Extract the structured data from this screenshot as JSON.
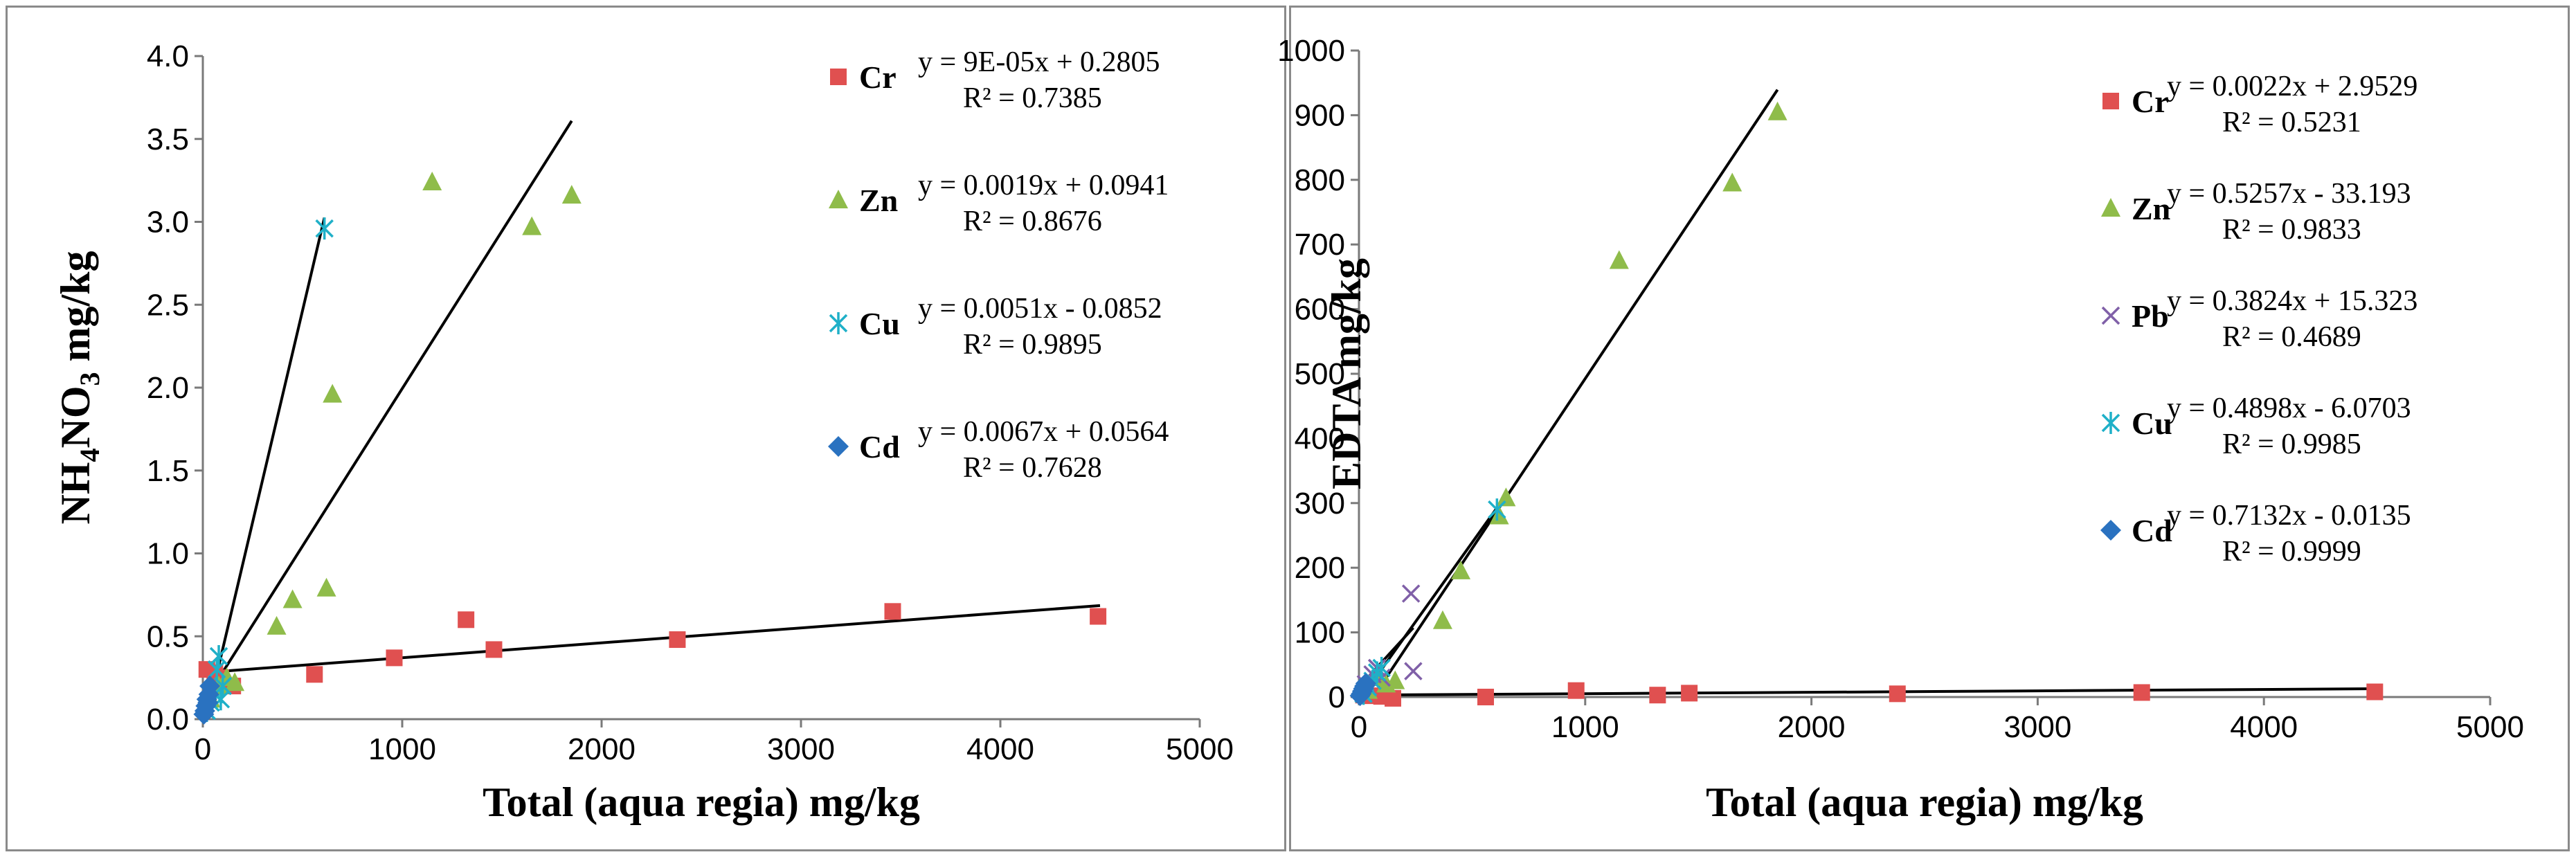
{
  "colors": {
    "Cr": "#e05050",
    "Zn": "#8fbc4a",
    "Pb": "#8060a8",
    "Cu": "#1fb0c8",
    "Cd": "#2a72c0",
    "line": "#000000",
    "frame": "#8a8a8a"
  },
  "chart_data": [
    {
      "type": "scatter",
      "title": "",
      "xlabel": "Total (aqua regia) mg/kg",
      "ylabel_main": "NH",
      "ylabel_sub1": "4",
      "ylabel_mid": "NO",
      "ylabel_sub2": "3",
      "ylabel_units": "mg/kg",
      "xlim": [
        0,
        5000
      ],
      "ylim": [
        0,
        4.0
      ],
      "xticks": [
        "0",
        "1000",
        "2000",
        "3000",
        "4000",
        "5000"
      ],
      "xtick_values": [
        0,
        1000,
        2000,
        3000,
        4000,
        5000
      ],
      "yticks": [
        "0.0",
        "0.5",
        "1.0",
        "1.5",
        "2.0",
        "2.5",
        "3.0",
        "3.5",
        "4.0"
      ],
      "ytick_values": [
        0,
        0.5,
        1.0,
        1.5,
        2.0,
        2.5,
        3.0,
        3.5,
        4.0
      ],
      "series": [
        {
          "name": "Cr",
          "marker": "square",
          "eq": "y = 9E-05x + 0.2805",
          "r2": "R² = 0.7385",
          "points": [
            [
              20,
              0.3
            ],
            [
              60,
              0.28
            ],
            [
              90,
              0.25
            ],
            [
              150,
              0.2
            ],
            [
              560,
              0.27
            ],
            [
              960,
              0.37
            ],
            [
              1320,
              0.6
            ],
            [
              1460,
              0.42
            ],
            [
              2380,
              0.48
            ],
            [
              3460,
              0.65
            ],
            [
              4490,
              0.62
            ]
          ],
          "fit": [
            [
              0,
              0.2805
            ],
            [
              4500,
              0.6855
            ]
          ]
        },
        {
          "name": "Zn",
          "marker": "triangle",
          "eq": "y = 0.0019x + 0.0941",
          "r2": "R² = 0.8676",
          "points": [
            [
              40,
              0.12
            ],
            [
              80,
              0.2
            ],
            [
              120,
              0.25
            ],
            [
              160,
              0.22
            ],
            [
              370,
              0.56
            ],
            [
              450,
              0.72
            ],
            [
              620,
              0.79
            ],
            [
              650,
              1.96
            ],
            [
              1150,
              3.24
            ],
            [
              1650,
              2.97
            ],
            [
              1850,
              3.16
            ]
          ],
          "fit": [
            [
              0,
              0.0941
            ],
            [
              1850,
              3.6091
            ]
          ]
        },
        {
          "name": "Cu",
          "marker": "star",
          "eq": "y = 0.0051x - 0.0852",
          "r2": "R² = 0.9895",
          "points": [
            [
              20,
              0.05
            ],
            [
              40,
              0.1
            ],
            [
              60,
              0.15
            ],
            [
              70,
              0.3
            ],
            [
              80,
              0.38
            ],
            [
              90,
              0.12
            ],
            [
              100,
              0.2
            ],
            [
              610,
              2.96
            ]
          ],
          "fit": [
            [
              20,
              0.0168
            ],
            [
              610,
              3.0258
            ]
          ]
        },
        {
          "name": "Cd",
          "marker": "diamond",
          "eq": "y = 0.0067x + 0.0564",
          "r2": "R² = 0.7628",
          "points": [
            [
              5,
              0.03
            ],
            [
              10,
              0.05
            ],
            [
              15,
              0.08
            ],
            [
              20,
              0.12
            ],
            [
              25,
              0.1
            ],
            [
              30,
              0.15
            ],
            [
              35,
              0.2
            ]
          ],
          "fit": [
            [
              0,
              0.0564
            ],
            [
              30,
              0.2574
            ]
          ]
        }
      ]
    },
    {
      "type": "scatter",
      "title": "",
      "xlabel": "Total (aqua regia) mg/kg",
      "ylabel_main": "EDTA",
      "ylabel_units": "mg/kg",
      "xlim": [
        0,
        5000
      ],
      "ylim": [
        0,
        1000
      ],
      "xticks": [
        "0",
        "1000",
        "2000",
        "3000",
        "4000",
        "5000"
      ],
      "xtick_values": [
        0,
        1000,
        2000,
        3000,
        4000,
        5000
      ],
      "yticks": [
        "0",
        "100",
        "200",
        "300",
        "400",
        "500",
        "600",
        "700",
        "800",
        "900",
        "1000"
      ],
      "ytick_values": [
        0,
        100,
        200,
        300,
        400,
        500,
        600,
        700,
        800,
        900,
        1000
      ],
      "series": [
        {
          "name": "Cr",
          "marker": "square",
          "eq": "y = 0.0022x + 2.9529",
          "r2": "R² = 0.5231",
          "points": [
            [
              20,
              3
            ],
            [
              60,
              2
            ],
            [
              100,
              1
            ],
            [
              150,
              -2
            ],
            [
              560,
              0
            ],
            [
              960,
              10
            ],
            [
              1320,
              3
            ],
            [
              1460,
              6
            ],
            [
              2380,
              5
            ],
            [
              3460,
              7
            ],
            [
              4490,
              8
            ]
          ],
          "fit": [
            [
              0,
              2.9529
            ],
            [
              4500,
              12.8529
            ]
          ]
        },
        {
          "name": "Zn",
          "marker": "triangle",
          "eq": "y = 0.5257x - 33.193",
          "r2": "R² = 0.9833",
          "points": [
            [
              40,
              10
            ],
            [
              80,
              30
            ],
            [
              120,
              20
            ],
            [
              160,
              25
            ],
            [
              370,
              118
            ],
            [
              450,
              195
            ],
            [
              620,
              280
            ],
            [
              650,
              308
            ],
            [
              1150,
              675
            ],
            [
              1650,
              795
            ],
            [
              1850,
              905
            ]
          ],
          "fit": [
            [
              80,
              8.863
            ],
            [
              1850,
              939.352
            ]
          ]
        },
        {
          "name": "Pb",
          "marker": "x",
          "eq": "y = 0.3824x + 15.323",
          "r2": "R² = 0.4689",
          "points": [
            [
              30,
              20
            ],
            [
              60,
              35
            ],
            [
              80,
              45
            ],
            [
              100,
              30
            ],
            [
              230,
              160
            ],
            [
              240,
              40
            ]
          ],
          "fit": [
            [
              0,
              15.323
            ],
            [
              240,
              107.099
            ]
          ]
        },
        {
          "name": "Cu",
          "marker": "star",
          "eq": "y = 0.4898x - 6.0703",
          "r2": "R² = 0.9985",
          "points": [
            [
              20,
              5
            ],
            [
              40,
              15
            ],
            [
              60,
              25
            ],
            [
              80,
              38
            ],
            [
              100,
              45
            ],
            [
              610,
              290
            ]
          ],
          "fit": [
            [
              20,
              3.7257
            ],
            [
              610,
              292.708
            ]
          ]
        },
        {
          "name": "Cd",
          "marker": "diamond",
          "eq": "y = 0.7132x - 0.0135",
          "r2": "R² = 0.9999",
          "points": [
            [
              5,
              2
            ],
            [
              10,
              5
            ],
            [
              15,
              9
            ],
            [
              20,
              13
            ],
            [
              25,
              17
            ],
            [
              30,
              21
            ]
          ],
          "fit": [
            [
              0,
              -0.0135
            ],
            [
              30,
              21.3825
            ]
          ]
        }
      ]
    }
  ]
}
